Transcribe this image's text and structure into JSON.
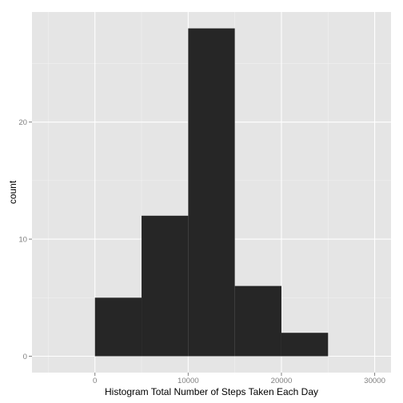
{
  "chart_data": {
    "type": "bar",
    "subtype": "histogram",
    "xlabel": "Histogram Total Number of Steps Taken Each Day",
    "ylabel": "count",
    "bin_width": 5000,
    "bins": [
      {
        "start": 0,
        "end": 5000,
        "count": 5
      },
      {
        "start": 5000,
        "end": 10000,
        "count": 12
      },
      {
        "start": 10000,
        "end": 15000,
        "count": 28
      },
      {
        "start": 15000,
        "end": 20000,
        "count": 6
      },
      {
        "start": 20000,
        "end": 25000,
        "count": 2
      }
    ],
    "x_ticks": [
      "0",
      "10000",
      "20000",
      "30000"
    ],
    "y_ticks": [
      "0",
      "10",
      "20"
    ],
    "xlim": [
      -6750,
      31750
    ],
    "ylim": [
      -1.4,
      29.4
    ],
    "grid": true,
    "legend": "none",
    "colors": {
      "panel_background": "#e5e5e5",
      "bar_fill": "#262626",
      "grid_major": "#ffffff",
      "grid_minor": "#f2f2f2",
      "tick_text": "#7f7f7f"
    }
  }
}
